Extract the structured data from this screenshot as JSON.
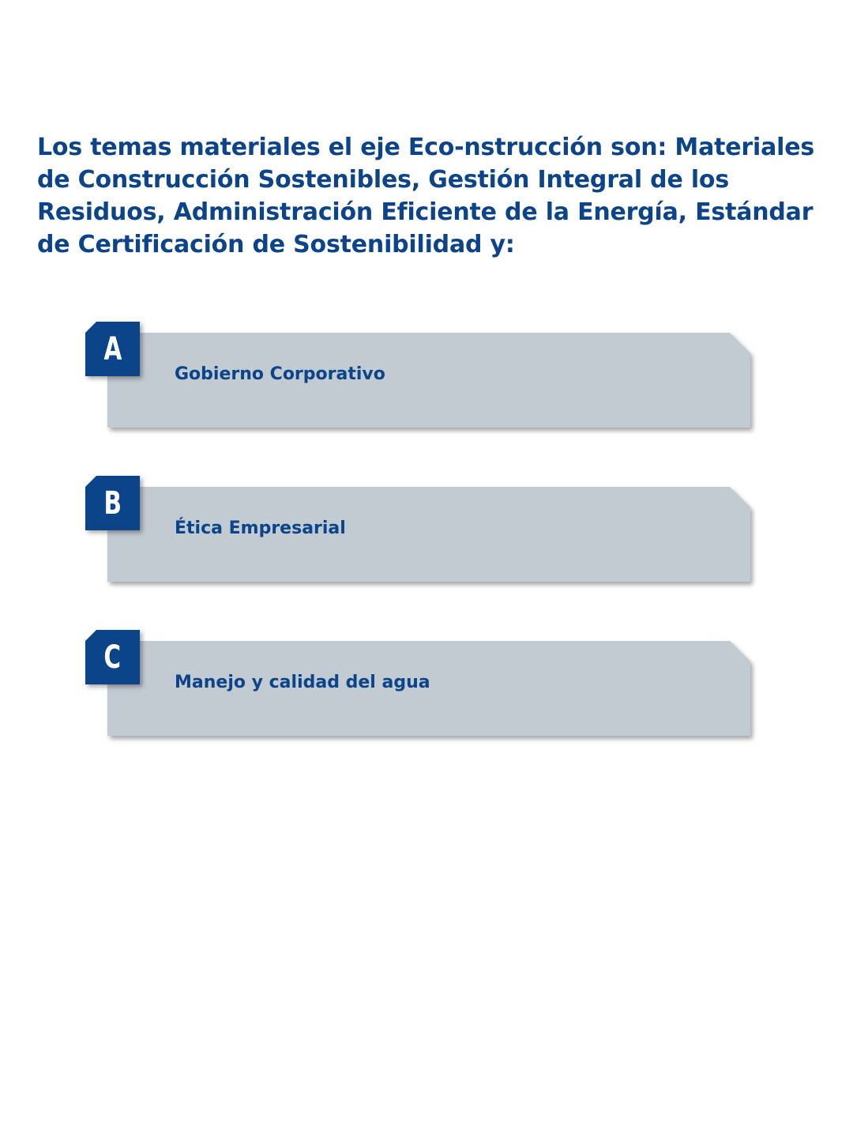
{
  "question": {
    "text": "Los temas materiales el eje Eco-nstrucción son: Materiales de Construcción Sostenibles, Gestión Integral de los Residuos, Administración Eficiente de la Energía, Estándar de Certificación de Sostenibilidad y:"
  },
  "options": [
    {
      "letter": "A",
      "label": "Gobierno Corporativo"
    },
    {
      "letter": "B",
      "label": "Ética Empresarial"
    },
    {
      "letter": "C",
      "label": "Manejo y calidad del agua"
    }
  ],
  "colors": {
    "text": "#0b4489",
    "badge": "#0b4489",
    "panel": "#c2cad2",
    "background": "#ffffff"
  }
}
